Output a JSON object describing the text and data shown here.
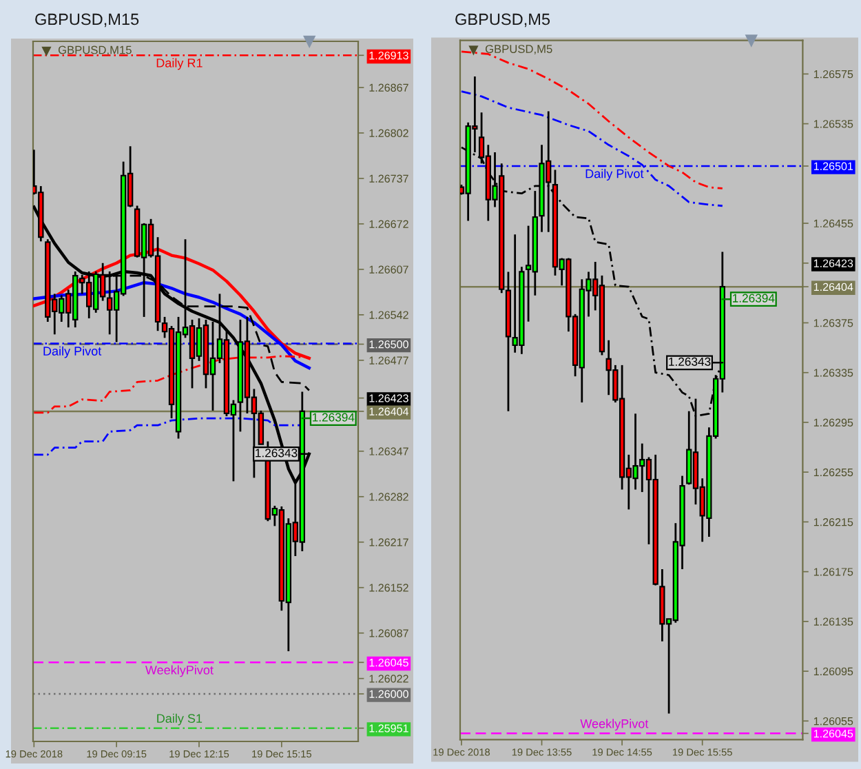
{
  "chart_data": [
    {
      "type": "candlestick",
      "title": "GBPUSD,M15",
      "subtitle": "GBPUSD,M15",
      "x": [
        "2018-12-19T06:15",
        "2018-12-19T06:30",
        "2018-12-19T06:45",
        "2018-12-19T07:00",
        "2018-12-19T07:15",
        "2018-12-19T07:30",
        "2018-12-19T07:45",
        "2018-12-19T08:00",
        "2018-12-19T08:15",
        "2018-12-19T08:30",
        "2018-12-19T08:45",
        "2018-12-19T09:00",
        "2018-12-19T09:15",
        "2018-12-19T09:30",
        "2018-12-19T09:45",
        "2018-12-19T10:00",
        "2018-12-19T10:15",
        "2018-12-19T10:30",
        "2018-12-19T10:45",
        "2018-12-19T11:00",
        "2018-12-19T11:15",
        "2018-12-19T11:30",
        "2018-12-19T11:45",
        "2018-12-19T12:00",
        "2018-12-19T12:15",
        "2018-12-19T12:30",
        "2018-12-19T12:45",
        "2018-12-19T13:00",
        "2018-12-19T13:15",
        "2018-12-19T13:30",
        "2018-12-19T13:45",
        "2018-12-19T14:00",
        "2018-12-19T14:15",
        "2018-12-19T14:30",
        "2018-12-19T14:45",
        "2018-12-19T15:00",
        "2018-12-19T15:15",
        "2018-12-19T15:30",
        "2018-12-19T15:45",
        "2018-12-19T16:00"
      ],
      "ohlc": [
        [
          1.26726,
          1.26778,
          1.26714,
          1.26716
        ],
        [
          1.26717,
          1.26726,
          1.26647,
          1.26653
        ],
        [
          1.26646,
          1.2665,
          1.26532,
          1.26539
        ],
        [
          1.26564,
          1.26572,
          1.26514,
          1.26547
        ],
        [
          1.26545,
          1.2657,
          1.26532,
          1.26565
        ],
        [
          1.26572,
          1.26578,
          1.26524,
          1.26545
        ],
        [
          1.26535,
          1.26604,
          1.26524,
          1.26598
        ],
        [
          1.26594,
          1.26599,
          1.26572,
          1.26588
        ],
        [
          1.26588,
          1.26604,
          1.26537,
          1.26554
        ],
        [
          1.2655,
          1.26604,
          1.26545,
          1.266
        ],
        [
          1.26599,
          1.26616,
          1.26562,
          1.26568
        ],
        [
          1.26566,
          1.26604,
          1.26514,
          1.26549
        ],
        [
          1.26549,
          1.266,
          1.26503,
          1.26575
        ],
        [
          1.26572,
          1.26761,
          1.26569,
          1.26741
        ],
        [
          1.26744,
          1.26783,
          1.26696,
          1.26698
        ],
        [
          1.26693,
          1.26698,
          1.26624,
          1.26626
        ],
        [
          1.26624,
          1.26673,
          1.26539,
          1.26671
        ],
        [
          1.26671,
          1.26679,
          1.26624,
          1.26627
        ],
        [
          1.26626,
          1.26653,
          1.26519,
          1.26532
        ],
        [
          1.2653,
          1.26539,
          1.26509,
          1.26518
        ],
        [
          1.26522,
          1.26526,
          1.26394,
          1.26414
        ],
        [
          1.26375,
          1.26539,
          1.26365,
          1.26517
        ],
        [
          1.26514,
          1.2665,
          1.26509,
          1.26524
        ],
        [
          1.26526,
          1.26535,
          1.26437,
          1.2648
        ],
        [
          1.26483,
          1.26537,
          1.26476,
          1.26523
        ],
        [
          1.26527,
          1.26535,
          1.26437,
          1.26457
        ],
        [
          1.26457,
          1.26532,
          1.26405,
          1.2648
        ],
        [
          1.2648,
          1.26572,
          1.26473,
          1.26507
        ],
        [
          1.26506,
          1.26519,
          1.26397,
          1.26401
        ],
        [
          1.26399,
          1.2642,
          1.26304,
          1.26414
        ],
        [
          1.26417,
          1.26535,
          1.26375,
          1.26503
        ],
        [
          1.26504,
          1.26539,
          1.26401,
          1.26424
        ],
        [
          1.26424,
          1.26436,
          1.26309,
          1.26401
        ],
        [
          1.26401,
          1.26405,
          1.26357,
          1.26357
        ],
        [
          1.26345,
          1.26361,
          1.26247,
          1.2625
        ],
        [
          1.26256,
          1.26269,
          1.2624,
          1.26265
        ],
        [
          1.26263,
          1.26268,
          1.26119,
          1.26133
        ],
        [
          1.26131,
          1.26251,
          1.26061,
          1.26243
        ],
        [
          1.26245,
          1.26302,
          1.26197,
          1.26218
        ],
        [
          1.26217,
          1.26432,
          1.26204,
          1.26404
        ]
      ],
      "colors": [
        "#ff0000",
        "#ff0000",
        "#ff0000",
        "#ff0000",
        "#00ff00",
        "#ff0000",
        "#00ff00",
        "#ff0000",
        "#ff0000",
        "#00ff00",
        "#ff0000",
        "#ff0000",
        "#00ff00",
        "#00ff00",
        "#ff0000",
        "#ff0000",
        "#00ff00",
        "#ff0000",
        "#ff0000",
        "#ff0000",
        "#ff0000",
        "#00ff00",
        "#00ff00",
        "#ff0000",
        "#00ff00",
        "#ff0000",
        "#00ff00",
        "#00ff00",
        "#ff0000",
        "#00ff00",
        "#00ff00",
        "#ff0000",
        "#ff0000",
        "#ff0000",
        "#ff0000",
        "#00ff00",
        "#ff0000",
        "#00ff00",
        "#ff0000",
        "#00ff00"
      ],
      "series": [
        {
          "type": "line",
          "color": "#ff0000",
          "line_style": "solid",
          "x": [
            "2018-12-19T06:15",
            "2018-12-19T06:45",
            "2018-12-19T07:15",
            "2018-12-19T07:45",
            "2018-12-19T08:15",
            "2018-12-19T08:45",
            "2018-12-19T09:15",
            "2018-12-19T09:45",
            "2018-12-19T10:15",
            "2018-12-19T10:45",
            "2018-12-19T11:15",
            "2018-12-19T11:45",
            "2018-12-19T12:15",
            "2018-12-19T12:45",
            "2018-12-19T13:15",
            "2018-12-19T13:45",
            "2018-12-19T14:15",
            "2018-12-19T14:45",
            "2018-12-19T15:15",
            "2018-12-19T15:45",
            "2018-12-19T16:15"
          ],
          "values": [
            1.26555,
            1.26562,
            1.26574,
            1.26588,
            1.26598,
            1.26608,
            1.26616,
            1.26627,
            1.2663,
            1.26636,
            1.26627,
            1.26623,
            1.26615,
            1.26606,
            1.2659,
            1.2657,
            1.26547,
            1.26521,
            1.26501,
            1.26487,
            1.2648
          ]
        },
        {
          "type": "line",
          "color": "#0000ff",
          "line_style": "solid",
          "x": [
            "2018-12-19T06:15",
            "2018-12-19T07:15",
            "2018-12-19T08:15",
            "2018-12-19T09:15",
            "2018-12-19T09:45",
            "2018-12-19T10:15",
            "2018-12-19T10:45",
            "2018-12-19T11:15",
            "2018-12-19T11:45",
            "2018-12-19T12:15",
            "2018-12-19T12:45",
            "2018-12-19T13:15",
            "2018-12-19T13:45",
            "2018-12-19T14:15",
            "2018-12-19T14:45",
            "2018-12-19T15:15",
            "2018-12-19T15:45",
            "2018-12-19T16:15"
          ],
          "values": [
            1.26565,
            1.2657,
            1.26572,
            1.26576,
            1.26582,
            1.26588,
            1.26586,
            1.2658,
            1.26572,
            1.26567,
            1.2656,
            1.26551,
            1.26543,
            1.26531,
            1.26515,
            1.26499,
            1.26476,
            1.26466
          ]
        },
        {
          "type": "line",
          "color": "#000000",
          "line_style": "solid",
          "x": [
            "2018-12-19T06:15",
            "2018-12-19T06:30",
            "2018-12-19T07:00",
            "2018-12-19T07:30",
            "2018-12-19T08:00",
            "2018-12-19T08:30",
            "2018-12-19T09:00",
            "2018-12-19T09:30",
            "2018-12-19T10:00",
            "2018-12-19T10:30",
            "2018-12-19T11:00",
            "2018-12-19T11:30",
            "2018-12-19T12:00",
            "2018-12-19T12:30",
            "2018-12-19T13:00",
            "2018-12-19T13:30",
            "2018-12-19T14:00",
            "2018-12-19T14:30",
            "2018-12-19T15:00",
            "2018-12-19T15:30",
            "2018-12-19T15:45",
            "2018-12-19T16:00",
            "2018-12-19T16:15"
          ],
          "values": [
            1.26696,
            1.26677,
            1.26644,
            1.26617,
            1.26602,
            1.26598,
            1.26598,
            1.26604,
            1.26602,
            1.26598,
            1.26572,
            1.26558,
            1.26547,
            1.26539,
            1.26531,
            1.26509,
            1.2648,
            1.26444,
            1.26391,
            1.26322,
            1.26302,
            1.26318,
            1.26343
          ]
        },
        {
          "type": "line",
          "color": "#000000",
          "line_style": "dashed",
          "x": [
            "2018-12-19T08:30",
            "2018-12-19T09:15",
            "2018-12-19T10:15",
            "2018-12-19T10:45",
            "2018-12-19T11:15",
            "2018-12-19T11:45",
            "2018-12-19T13:30",
            "2018-12-19T14:00",
            "2018-12-19T14:30",
            "2018-12-19T14:45",
            "2018-12-19T15:00",
            "2018-12-19T15:15",
            "2018-12-19T16:00",
            "2018-12-19T16:15"
          ],
          "values": [
            1.26596,
            1.26598,
            1.26598,
            1.26588,
            1.26568,
            1.26554,
            1.26554,
            1.26552,
            1.26499,
            1.26497,
            1.2646,
            1.26446,
            1.26444,
            1.26434
          ]
        },
        {
          "type": "line",
          "color": "#ff0000",
          "line_style": "dashdot",
          "x": [
            "2018-12-19T06:15",
            "2018-12-19T06:45",
            "2018-12-19T07:00",
            "2018-12-19T07:30",
            "2018-12-19T08:00",
            "2018-12-19T08:45",
            "2018-12-19T09:00",
            "2018-12-19T09:45",
            "2018-12-19T10:00",
            "2018-12-19T10:45",
            "2018-12-19T11:15",
            "2018-12-19T12:00",
            "2018-12-19T12:30",
            "2018-12-19T13:00",
            "2018-12-19T13:45",
            "2018-12-19T14:45",
            "2018-12-19T15:15",
            "2018-12-19T16:15"
          ],
          "values": [
            1.26402,
            1.26402,
            1.26411,
            1.26411,
            1.26421,
            1.26419,
            1.26432,
            1.26434,
            1.26446,
            1.26448,
            1.26456,
            1.26466,
            1.26472,
            1.26478,
            1.26481,
            1.26481,
            1.26483,
            1.26481
          ]
        },
        {
          "type": "line",
          "color": "#0000ff",
          "line_style": "dashdot",
          "x": [
            "2018-12-19T06:15",
            "2018-12-19T06:45",
            "2018-12-19T07:00",
            "2018-12-19T07:45",
            "2018-12-19T08:00",
            "2018-12-19T08:45",
            "2018-12-19T09:00",
            "2018-12-19T09:45",
            "2018-12-19T10:00",
            "2018-12-19T10:45",
            "2018-12-19T11:15",
            "2018-12-19T12:15",
            "2018-12-19T13:45",
            "2018-12-19T14:45",
            "2018-12-19T15:00",
            "2018-12-19T16:00"
          ],
          "values": [
            1.26342,
            1.26342,
            1.26352,
            1.26352,
            1.26361,
            1.26361,
            1.26375,
            1.26377,
            1.26384,
            1.26384,
            1.26391,
            1.26394,
            1.26394,
            1.26391,
            1.26384,
            1.26384
          ]
        }
      ],
      "xlim": [
        "2018-12-19T06:13",
        "2018-12-19T18:02"
      ],
      "ylim": [
        1.25932,
        1.26933
      ],
      "xticks": [
        {
          "value": "2018-12-19T06:15",
          "label": "19 Dec 2018"
        },
        {
          "value": "2018-12-19T09:15",
          "label": "19 Dec 09:15"
        },
        {
          "value": "2018-12-19T12:15",
          "label": "19 Dec 12:15"
        },
        {
          "value": "2018-12-19T15:15",
          "label": "19 Dec 15:15"
        }
      ],
      "yticks": [
        1.26913,
        1.26867,
        1.26802,
        1.26737,
        1.26672,
        1.26607,
        1.26542,
        {
          "value": 1.265,
          "label": "1.26500"
        },
        1.26477,
        1.26423,
        1.26404,
        1.26347,
        1.26282,
        1.26217,
        1.26152,
        1.26087,
        1.26045,
        1.26022,
        {
          "value": 1.26,
          "label": "1.26000"
        },
        1.25951
      ],
      "ref_lines": [
        {
          "axis": "y",
          "value": 1.26913,
          "label": "Daily R1",
          "color": "#ff0000",
          "line_style": "dashdot"
        },
        {
          "axis": "y",
          "value": 1.265,
          "color": "#5f5f5f",
          "line_style": "dashed"
        },
        {
          "axis": "y",
          "value": 1.26501,
          "label": "Daily Pivot",
          "color": "#0000ff",
          "line_style": "dashdot"
        },
        {
          "axis": "y",
          "value": 1.26404,
          "color": "#7a7a52",
          "line_style": "solid"
        },
        {
          "axis": "y",
          "value": 1.26045,
          "label": "WeeklyPivot",
          "color": "#ff00ff",
          "line_style": "dashed"
        },
        {
          "axis": "y",
          "value": 1.26,
          "color": "#6e6e6e",
          "line_style": "dotted"
        },
        {
          "axis": "y",
          "value": 1.25951,
          "label": "Daily S1",
          "color": "#33cc33",
          "line_style": "dashdot"
        }
      ],
      "annotations": [
        {
          "text": "1.26343",
          "x": "2018-12-19T16:15",
          "y": 1.26343
        },
        {
          "text": "1.26394",
          "x": "2018-12-19T16:00",
          "y": 1.26394
        }
      ]
    },
    {
      "type": "candlestick",
      "title": "GBPUSD,M5",
      "subtitle": "GBPUSD,M5",
      "x": [
        "2018-12-19T12:55",
        "2018-12-19T13:00",
        "2018-12-19T13:05",
        "2018-12-19T13:10",
        "2018-12-19T13:15",
        "2018-12-19T13:20",
        "2018-12-19T13:25",
        "2018-12-19T13:30",
        "2018-12-19T13:35",
        "2018-12-19T13:40",
        "2018-12-19T13:45",
        "2018-12-19T13:50",
        "2018-12-19T13:55",
        "2018-12-19T14:00",
        "2018-12-19T14:05",
        "2018-12-19T14:10",
        "2018-12-19T14:15",
        "2018-12-19T14:20",
        "2018-12-19T14:25",
        "2018-12-19T14:30",
        "2018-12-19T14:35",
        "2018-12-19T14:40",
        "2018-12-19T14:45",
        "2018-12-19T14:50",
        "2018-12-19T14:55",
        "2018-12-19T15:00",
        "2018-12-19T15:05",
        "2018-12-19T15:10",
        "2018-12-19T15:15",
        "2018-12-19T15:20",
        "2018-12-19T15:25",
        "2018-12-19T15:30",
        "2018-12-19T15:35",
        "2018-12-19T15:40",
        "2018-12-19T15:45",
        "2018-12-19T15:50",
        "2018-12-19T15:55",
        "2018-12-19T16:00",
        "2018-12-19T16:05",
        "2018-12-19T16:10"
      ],
      "ohlc": [
        [
          1.26484,
          1.26486,
          1.26478,
          1.26479
        ],
        [
          1.26479,
          1.26536,
          1.26457,
          1.26533
        ],
        [
          1.26533,
          1.26573,
          1.26512,
          1.26531
        ],
        [
          1.26524,
          1.26544,
          1.26503,
          1.26508
        ],
        [
          1.26509,
          1.26518,
          1.26457,
          1.26474
        ],
        [
          1.26474,
          1.26512,
          1.26468,
          1.26485
        ],
        [
          1.26493,
          1.26503,
          1.26399,
          1.26402
        ],
        [
          1.26401,
          1.26416,
          1.26304,
          1.26364
        ],
        [
          1.26357,
          1.26446,
          1.26351,
          1.26363
        ],
        [
          1.26357,
          1.2642,
          1.2635,
          1.26416
        ],
        [
          1.26418,
          1.26453,
          1.26376,
          1.26421
        ],
        [
          1.26416,
          1.26481,
          1.26397,
          1.2646
        ],
        [
          1.26461,
          1.26518,
          1.26448,
          1.26503
        ],
        [
          1.26505,
          1.26545,
          1.26448,
          1.26488
        ],
        [
          1.26486,
          1.26498,
          1.26413,
          1.2642
        ],
        [
          1.26418,
          1.26427,
          1.26405,
          1.26426
        ],
        [
          1.26426,
          1.26427,
          1.26368,
          1.2638
        ],
        [
          1.2638,
          1.26382,
          1.26332,
          1.26341
        ],
        [
          1.26339,
          1.2641,
          1.26311,
          1.26402
        ],
        [
          1.26401,
          1.26416,
          1.2638,
          1.2641
        ],
        [
          1.2641,
          1.26424,
          1.26385,
          1.26397
        ],
        [
          1.26405,
          1.26413,
          1.26349,
          1.26352
        ],
        [
          1.26346,
          1.26361,
          1.26317,
          1.26337
        ],
        [
          1.26337,
          1.26341,
          1.26311,
          1.26313
        ],
        [
          1.26314,
          1.26341,
          1.26241,
          1.26251
        ],
        [
          1.26258,
          1.26269,
          1.26225,
          1.26251
        ],
        [
          1.2625,
          1.26302,
          1.26241,
          1.2626
        ],
        [
          1.2626,
          1.26278,
          1.26239,
          1.26265
        ],
        [
          1.26265,
          1.26267,
          1.26197,
          1.26249
        ],
        [
          1.26249,
          1.26269,
          1.26164,
          1.26165
        ],
        [
          1.26163,
          1.26177,
          1.26119,
          1.26133
        ],
        [
          1.26133,
          1.26137,
          1.26061,
          1.26137
        ],
        [
          1.26136,
          1.26214,
          1.26134,
          1.26199
        ],
        [
          1.26196,
          1.26252,
          1.26177,
          1.26244
        ],
        [
          1.26246,
          1.26304,
          1.26245,
          1.26273
        ],
        [
          1.26271,
          1.26314,
          1.26229,
          1.26242
        ],
        [
          1.26243,
          1.2625,
          1.26199,
          1.2622
        ],
        [
          1.26218,
          1.26291,
          1.26203,
          1.26284
        ],
        [
          1.26284,
          1.26333,
          1.26282,
          1.2633
        ],
        [
          1.2633,
          1.26432,
          1.26319,
          1.26404
        ]
      ],
      "colors": [
        "#ff0000",
        "#00ff00",
        "#ff0000",
        "#ff0000",
        "#ff0000",
        "#00ff00",
        "#ff0000",
        "#ff0000",
        "#00ff00",
        "#00ff00",
        "#00ff00",
        "#00ff00",
        "#00ff00",
        "#ff0000",
        "#ff0000",
        "#00ff00",
        "#ff0000",
        "#ff0000",
        "#00ff00",
        "#00ff00",
        "#ff0000",
        "#ff0000",
        "#ff0000",
        "#ff0000",
        "#ff0000",
        "#ff0000",
        "#00ff00",
        "#00ff00",
        "#ff0000",
        "#ff0000",
        "#ff0000",
        "#00ff00",
        "#00ff00",
        "#00ff00",
        "#00ff00",
        "#ff0000",
        "#ff0000",
        "#00ff00",
        "#00ff00",
        "#00ff00"
      ],
      "series": [
        {
          "type": "line",
          "color": "#ff0000",
          "line_style": "dashdot",
          "x": [
            "2018-12-19T12:55",
            "2018-12-19T13:15",
            "2018-12-19T13:30",
            "2018-12-19T13:45",
            "2018-12-19T14:00",
            "2018-12-19T14:15",
            "2018-12-19T14:30",
            "2018-12-19T14:45",
            "2018-12-19T15:00",
            "2018-12-19T15:15",
            "2018-12-19T15:30",
            "2018-12-19T15:40",
            "2018-12-19T15:50",
            "2018-12-19T16:00",
            "2018-12-19T16:10"
          ],
          "values": [
            1.26593,
            1.26591,
            1.26584,
            1.26579,
            1.26571,
            1.26562,
            1.26551,
            1.26537,
            1.26524,
            1.26512,
            1.26501,
            1.26496,
            1.26488,
            1.26484,
            1.26483
          ]
        },
        {
          "type": "line",
          "color": "#0000ff",
          "line_style": "dashdot",
          "x": [
            "2018-12-19T12:55",
            "2018-12-19T13:10",
            "2018-12-19T13:30",
            "2018-12-19T13:55",
            "2018-12-19T14:15",
            "2018-12-19T14:30",
            "2018-12-19T14:45",
            "2018-12-19T15:00",
            "2018-12-19T15:10",
            "2018-12-19T15:20",
            "2018-12-19T15:30",
            "2018-12-19T15:45",
            "2018-12-19T16:00",
            "2018-12-19T16:10"
          ],
          "values": [
            1.26561,
            1.26557,
            1.26548,
            1.26542,
            1.26534,
            1.26529,
            1.26518,
            1.26509,
            1.26502,
            1.2649,
            1.26485,
            1.26472,
            1.2647,
            1.26469
          ]
        },
        {
          "type": "line",
          "color": "#000000",
          "line_style": "dashdot",
          "x": [
            "2018-12-19T12:55",
            "2018-12-19T13:10",
            "2018-12-19T13:15",
            "2018-12-19T13:25",
            "2018-12-19T13:40",
            "2018-12-19T13:50",
            "2018-12-19T14:00",
            "2018-12-19T14:10",
            "2018-12-19T14:20",
            "2018-12-19T14:30",
            "2018-12-19T14:35",
            "2018-12-19T14:45",
            "2018-12-19T14:50",
            "2018-12-19T15:00",
            "2018-12-19T15:10",
            "2018-12-19T15:15",
            "2018-12-19T15:20",
            "2018-12-19T15:30",
            "2018-12-19T15:40",
            "2018-12-19T15:45",
            "2018-12-19T15:50",
            "2018-12-19T16:00",
            "2018-12-19T16:05",
            "2018-12-19T16:10"
          ],
          "values": [
            1.26516,
            1.26507,
            1.26496,
            1.26481,
            1.26479,
            1.26485,
            1.26485,
            1.26471,
            1.2646,
            1.26459,
            1.2644,
            1.26438,
            1.26405,
            1.26404,
            1.2638,
            1.26378,
            1.26335,
            1.26333,
            1.26319,
            1.26316,
            1.263,
            1.26302,
            1.2633,
            1.26343
          ]
        }
      ],
      "xlim": [
        "2018-12-19T12:54",
        "2018-12-19T17:10"
      ],
      "ylim": [
        1.2604,
        1.26602
      ],
      "xticks": [
        {
          "value": "2018-12-19T12:55",
          "label": "19 Dec 2018"
        },
        {
          "value": "2018-12-19T13:55",
          "label": "19 Dec 13:55"
        },
        {
          "value": "2018-12-19T14:55",
          "label": "19 Dec 14:55"
        },
        {
          "value": "2018-12-19T15:55",
          "label": "19 Dec 15:55"
        }
      ],
      "yticks": [
        1.26575,
        1.26535,
        1.26501,
        1.26455,
        1.26423,
        1.26404,
        1.26375,
        1.26335,
        1.26295,
        1.26255,
        1.26215,
        1.26175,
        1.26135,
        1.26095,
        1.26055,
        1.26045
      ],
      "ref_lines": [
        {
          "axis": "y",
          "value": 1.26501,
          "label": "Daily Pivot",
          "color": "#0000ff",
          "line_style": "dashdot"
        },
        {
          "axis": "y",
          "value": 1.26404,
          "color": "#7a7a52",
          "line_style": "solid"
        },
        {
          "axis": "y",
          "value": 1.26045,
          "label": "WeeklyPivot",
          "color": "#ff00ff",
          "line_style": "dashed"
        }
      ],
      "annotations": [
        {
          "text": "1.26343",
          "x": "2018-12-19T16:10",
          "y": 1.26343
        },
        {
          "text": "1.26394",
          "x": "2018-12-19T16:10",
          "y": 1.26394
        }
      ]
    }
  ]
}
